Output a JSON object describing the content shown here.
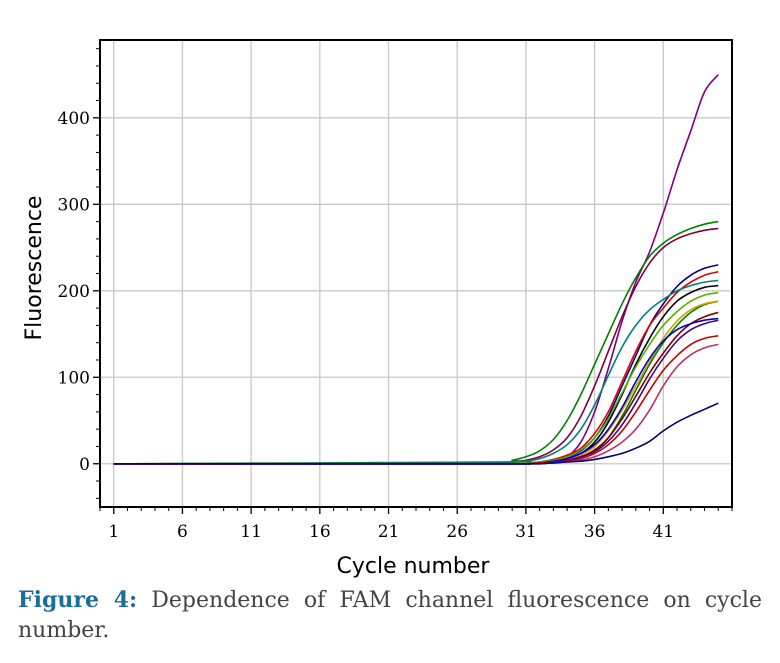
{
  "caption": {
    "label": "Figure 4:",
    "text": " Dependence of FAM channel fluorescence on cycle number."
  },
  "chart_data": {
    "type": "line",
    "title": "",
    "xlabel": "Cycle number",
    "ylabel": "Fluorescence",
    "xlim": [
      0,
      46
    ],
    "ylim": [
      -50,
      490
    ],
    "xticks": [
      1,
      6,
      11,
      16,
      21,
      26,
      31,
      36,
      41
    ],
    "yticks": [
      0,
      100,
      200,
      300,
      400
    ],
    "grid": true,
    "legend": "none",
    "series": [
      {
        "color": "#800080",
        "x": [
          1,
          29,
          30,
          31,
          32,
          33,
          34,
          35,
          36,
          37,
          38,
          39,
          40,
          41,
          42,
          43,
          44,
          45
        ],
        "y": [
          0,
          0,
          0,
          0,
          1,
          3,
          8,
          25,
          60,
          110,
          165,
          210,
          245,
          290,
          340,
          385,
          430,
          450
        ]
      },
      {
        "color": "#008000",
        "x": [
          1,
          29,
          30,
          31,
          32,
          33,
          34,
          35,
          36,
          37,
          38,
          39,
          40,
          41,
          42,
          43,
          44,
          45
        ],
        "y": [
          0,
          2,
          4,
          8,
          15,
          28,
          50,
          80,
          115,
          150,
          185,
          215,
          240,
          255,
          265,
          272,
          277,
          280
        ]
      },
      {
        "color": "#800040",
        "x": [
          1,
          29,
          30,
          31,
          32,
          33,
          34,
          35,
          36,
          37,
          38,
          39,
          40,
          41,
          42,
          43,
          44,
          45
        ],
        "y": [
          0,
          1,
          2,
          4,
          8,
          16,
          30,
          55,
          90,
          130,
          170,
          205,
          232,
          250,
          260,
          266,
          270,
          272
        ]
      },
      {
        "color": "#000080",
        "x": [
          1,
          29,
          30,
          31,
          32,
          33,
          34,
          35,
          36,
          37,
          38,
          39,
          40,
          41,
          42,
          43,
          44,
          45
        ],
        "y": [
          0,
          0,
          0,
          1,
          2,
          4,
          8,
          15,
          30,
          55,
          90,
          125,
          160,
          185,
          205,
          218,
          226,
          230
        ]
      },
      {
        "color": "#e00000",
        "x": [
          1,
          29,
          30,
          31,
          32,
          33,
          34,
          35,
          36,
          37,
          38,
          39,
          40,
          41,
          42,
          43,
          44,
          45
        ],
        "y": [
          0,
          0,
          0,
          1,
          2,
          5,
          10,
          18,
          35,
          60,
          95,
          130,
          160,
          180,
          198,
          210,
          218,
          222
        ]
      },
      {
        "color": "#008080",
        "x": [
          1,
          29,
          30,
          31,
          32,
          33,
          34,
          35,
          36,
          37,
          38,
          39,
          40,
          41,
          42,
          43,
          44,
          45
        ],
        "y": [
          0,
          1,
          2,
          3,
          6,
          12,
          22,
          40,
          68,
          102,
          135,
          160,
          178,
          190,
          200,
          206,
          210,
          212
        ]
      },
      {
        "color": "#000000",
        "x": [
          1,
          29,
          30,
          31,
          32,
          33,
          34,
          35,
          36,
          37,
          38,
          39,
          40,
          41,
          42,
          43,
          44,
          45
        ],
        "y": [
          0,
          0,
          0,
          0,
          1,
          3,
          6,
          12,
          25,
          48,
          80,
          115,
          145,
          170,
          188,
          198,
          204,
          206
        ]
      },
      {
        "color": "#55b000",
        "x": [
          1,
          29,
          30,
          31,
          32,
          33,
          34,
          35,
          36,
          37,
          38,
          39,
          40,
          41,
          42,
          43,
          44,
          45
        ],
        "y": [
          0,
          0,
          0,
          1,
          2,
          4,
          8,
          16,
          30,
          52,
          82,
          112,
          138,
          160,
          176,
          188,
          195,
          198
        ]
      },
      {
        "color": "#008000",
        "x": [
          1,
          29,
          30,
          31,
          32,
          33,
          34,
          35,
          36,
          37,
          38,
          39,
          40,
          41,
          42,
          43,
          44,
          45
        ],
        "y": [
          0,
          0,
          0,
          0,
          1,
          2,
          4,
          8,
          15,
          30,
          55,
          85,
          115,
          140,
          160,
          175,
          184,
          188
        ]
      },
      {
        "color": "#d4a000",
        "x": [
          1,
          29,
          30,
          31,
          32,
          33,
          34,
          35,
          36,
          37,
          38,
          39,
          40,
          41,
          42,
          43,
          44,
          45
        ],
        "y": [
          0,
          0,
          0,
          0,
          1,
          2,
          5,
          10,
          20,
          38,
          62,
          90,
          118,
          145,
          165,
          178,
          185,
          188
        ]
      },
      {
        "color": "#800000",
        "x": [
          1,
          29,
          30,
          31,
          32,
          33,
          34,
          35,
          36,
          37,
          38,
          39,
          40,
          41,
          42,
          43,
          44,
          45
        ],
        "y": [
          0,
          0,
          0,
          0,
          1,
          2,
          4,
          8,
          16,
          30,
          52,
          78,
          105,
          128,
          148,
          162,
          170,
          175
        ]
      },
      {
        "color": "#0000c0",
        "x": [
          1,
          29,
          30,
          31,
          32,
          33,
          34,
          35,
          36,
          37,
          38,
          39,
          40,
          41,
          42,
          43,
          44,
          45
        ],
        "y": [
          0,
          0,
          0,
          0,
          1,
          3,
          6,
          12,
          22,
          40,
          65,
          95,
          122,
          142,
          155,
          162,
          166,
          168
        ]
      },
      {
        "color": "#4b0082",
        "x": [
          1,
          29,
          30,
          31,
          32,
          33,
          34,
          35,
          36,
          37,
          38,
          39,
          40,
          41,
          42,
          43,
          44,
          45
        ],
        "y": [
          0,
          0,
          0,
          0,
          1,
          2,
          4,
          8,
          14,
          26,
          45,
          70,
          98,
          122,
          142,
          155,
          162,
          166
        ]
      },
      {
        "color": "#c00000",
        "x": [
          1,
          29,
          30,
          31,
          32,
          33,
          34,
          35,
          36,
          37,
          38,
          39,
          40,
          41,
          42,
          43,
          44,
          45
        ],
        "y": [
          0,
          0,
          0,
          0,
          1,
          2,
          3,
          6,
          12,
          22,
          38,
          60,
          85,
          108,
          125,
          138,
          145,
          148
        ]
      },
      {
        "color": "#c03060",
        "x": [
          1,
          29,
          30,
          31,
          32,
          33,
          34,
          35,
          36,
          37,
          38,
          39,
          40,
          41,
          42,
          43,
          44,
          45
        ],
        "y": [
          0,
          0,
          0,
          0,
          0,
          1,
          2,
          4,
          8,
          15,
          25,
          40,
          62,
          90,
          112,
          126,
          134,
          138
        ]
      },
      {
        "color": "#000080",
        "x": [
          1,
          29,
          30,
          31,
          32,
          33,
          34,
          35,
          36,
          37,
          38,
          39,
          40,
          41,
          42,
          43,
          44,
          45
        ],
        "y": [
          0,
          0,
          0,
          0,
          0,
          1,
          2,
          3,
          5,
          8,
          12,
          18,
          26,
          38,
          48,
          56,
          63,
          70
        ]
      }
    ]
  }
}
